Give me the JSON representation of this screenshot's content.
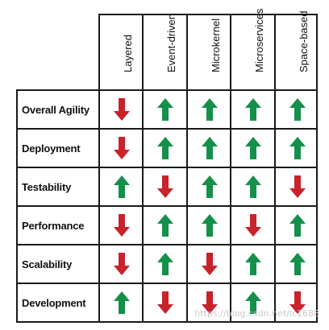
{
  "columns": [
    "Layered",
    "Event-driven",
    "Microkernel",
    "Microservices",
    "Space-based"
  ],
  "rows": [
    {
      "label": "Overall Agility",
      "ratings": [
        "down",
        "up",
        "up",
        "up",
        "up"
      ]
    },
    {
      "label": "Deployment",
      "ratings": [
        "down",
        "up",
        "up",
        "up",
        "up"
      ]
    },
    {
      "label": "Testability",
      "ratings": [
        "up",
        "down",
        "up",
        "up",
        "down"
      ]
    },
    {
      "label": "Performance",
      "ratings": [
        "down",
        "up",
        "up",
        "down",
        "up"
      ]
    },
    {
      "label": "Scalability",
      "ratings": [
        "down",
        "up",
        "down",
        "up",
        "up"
      ]
    },
    {
      "label": "Development",
      "ratings": [
        "up",
        "down",
        "down",
        "up",
        "down"
      ]
    }
  ],
  "colors": {
    "up": "#14904a",
    "down": "#c8222b",
    "lines": "#1a1a1a"
  },
  "icons": {
    "up": "arrow-up-icon",
    "down": "arrow-down-icon"
  },
  "watermark": "https://blog.csdn.net/lc1688"
}
